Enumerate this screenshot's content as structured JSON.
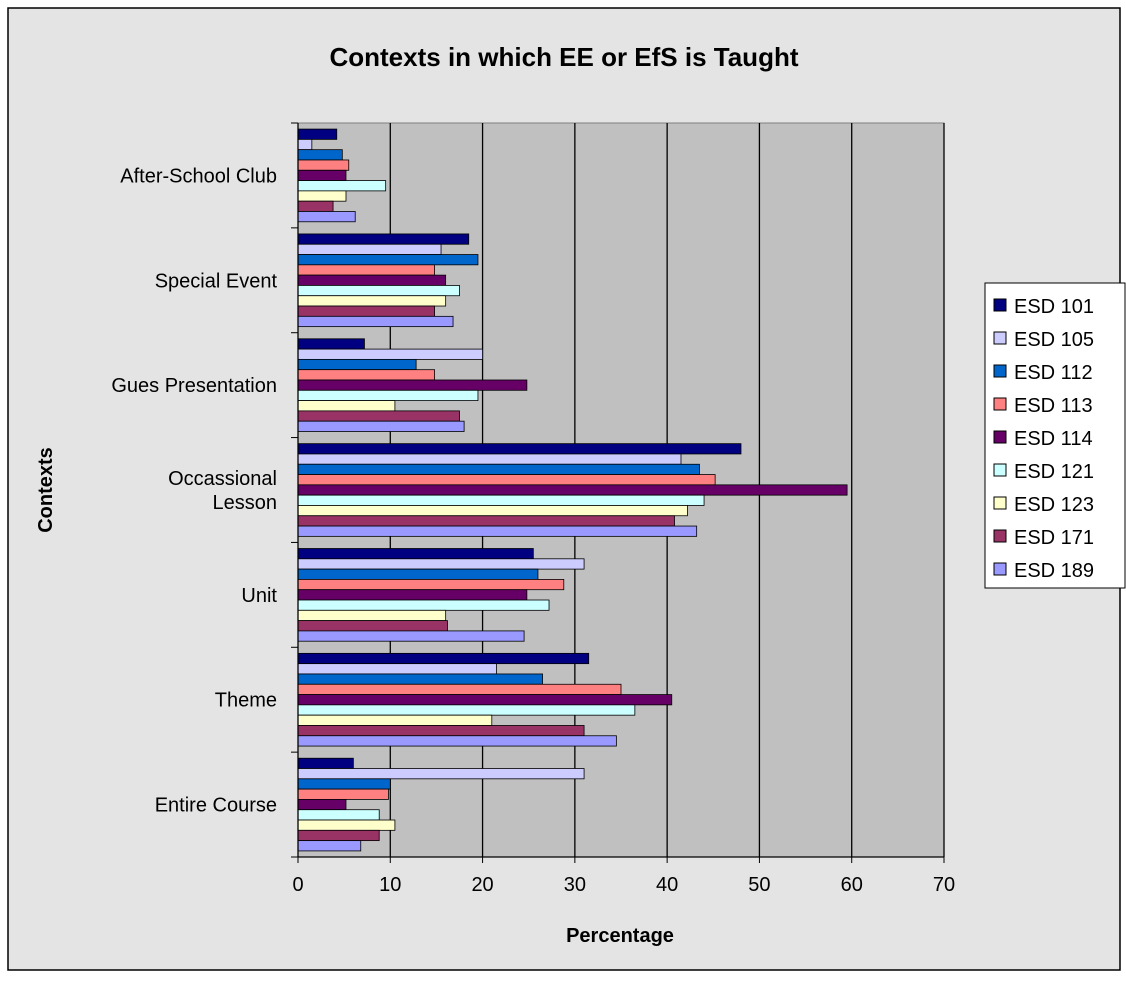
{
  "chart_data": {
    "type": "bar",
    "orientation": "horizontal",
    "title": "Contexts in which EE or EfS is Taught",
    "xlabel": "Percentage",
    "ylabel": "Contexts",
    "xlim": [
      0,
      70
    ],
    "xticks": [
      0,
      10,
      20,
      30,
      40,
      50,
      60,
      70
    ],
    "grid": true,
    "legend_position": "right",
    "categories": [
      [
        "After-School Club"
      ],
      [
        "Special Event"
      ],
      [
        "Gues Presentation"
      ],
      [
        "Occassional",
        "Lesson"
      ],
      [
        "Unit"
      ],
      [
        "Theme"
      ],
      [
        "Entire Course"
      ]
    ],
    "series": [
      {
        "name": "ESD 101",
        "color": "#000080",
        "values": [
          4.2,
          18.5,
          7.2,
          48.0,
          25.5,
          31.5,
          6.0
        ]
      },
      {
        "name": "ESD 105",
        "color": "#CCCCFF",
        "values": [
          1.5,
          15.5,
          20.0,
          41.5,
          31.0,
          21.5,
          31.0
        ]
      },
      {
        "name": "ESD 112",
        "color": "#0066CC",
        "values": [
          4.8,
          19.5,
          12.8,
          43.5,
          26.0,
          26.5,
          10.0
        ]
      },
      {
        "name": "ESD 113",
        "color": "#FF8080",
        "values": [
          5.5,
          14.8,
          14.8,
          45.2,
          28.8,
          35.0,
          9.8
        ]
      },
      {
        "name": "ESD 114",
        "color": "#660066",
        "values": [
          5.2,
          16.0,
          24.8,
          59.5,
          24.8,
          40.5,
          5.2
        ]
      },
      {
        "name": "ESD 121",
        "color": "#CCFFFF",
        "values": [
          9.5,
          17.5,
          19.5,
          44.0,
          27.2,
          36.5,
          8.8
        ]
      },
      {
        "name": "ESD 123",
        "color": "#FFFFCC",
        "values": [
          5.2,
          16.0,
          10.5,
          42.2,
          16.0,
          21.0,
          10.5
        ]
      },
      {
        "name": "ESD 171",
        "color": "#993366",
        "values": [
          3.8,
          14.8,
          17.5,
          40.8,
          16.2,
          31.0,
          8.8
        ]
      },
      {
        "name": "ESD 189",
        "color": "#9999FF",
        "values": [
          6.2,
          16.8,
          18.0,
          43.2,
          24.5,
          34.5,
          6.8
        ]
      }
    ]
  }
}
